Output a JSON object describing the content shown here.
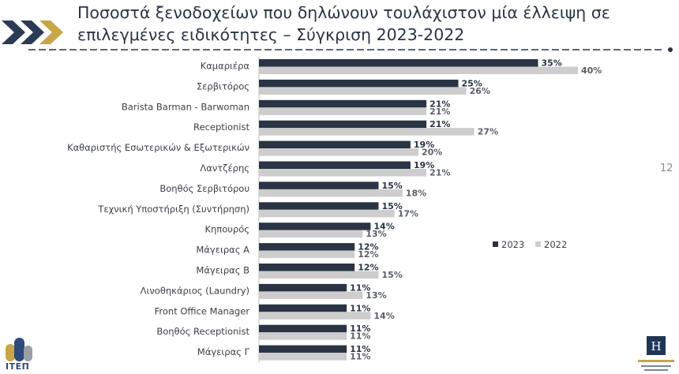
{
  "header": {
    "title_line1": "Ποσοστά ξενοδοχείων που δηλώνουν τουλάχιστον μία έλλειψη σε",
    "title_line2": "επιλεγμένες ειδικότητες – Σύγκριση 2023-2022"
  },
  "page_number": "12",
  "logos": {
    "left_text": "ΙΤΕΠ",
    "right_letter": "H"
  },
  "colors": {
    "series_2023": "#2b3444",
    "series_2022": "#cdcdcd",
    "title": "#2a3444",
    "accent_gold": "#c9a448"
  },
  "chart_data": {
    "type": "bar",
    "orientation": "horizontal",
    "categories": [
      "Καμαριέρα",
      "Σερβιτόρος",
      "Barista  Barman - Barwoman",
      "Receptionist",
      "Καθαριστής Εσωτερικών & Εξωτερικών",
      "Λαντζέρης",
      "Βοηθός Σερβιτόρου",
      "Τεχνική Υποστήριξη (Συντήρηση)",
      "Κηπουρός",
      "Μάγειρας Α",
      "Μάγειρας Β",
      "Λινοθηκάριος (Laundry)",
      "Front Office Manager",
      "Βοηθός Receptionist",
      "Μάγειρας Γ"
    ],
    "series": [
      {
        "name": "2023",
        "values": [
          35,
          25,
          21,
          21,
          19,
          19,
          15,
          15,
          14,
          12,
          12,
          11,
          11,
          11,
          11
        ]
      },
      {
        "name": "2022",
        "values": [
          40,
          26,
          21,
          27,
          20,
          21,
          18,
          17,
          13,
          12,
          15,
          13,
          14,
          11,
          11
        ]
      }
    ],
    "value_suffix": "%",
    "legend_position": "right",
    "grid": false
  }
}
